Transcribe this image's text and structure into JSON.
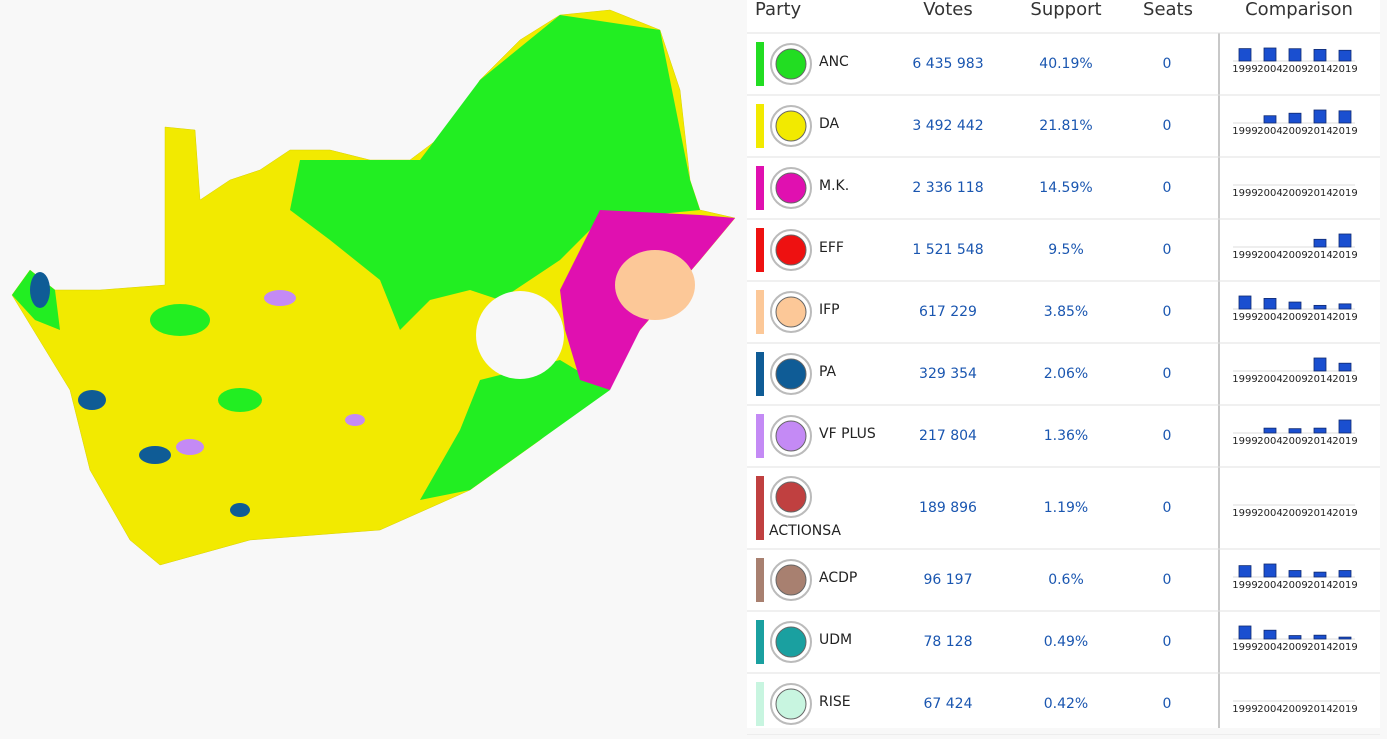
{
  "header": {
    "party": "Party",
    "votes": "Votes",
    "support": "Support",
    "seats": "Seats",
    "comparison": "Comparison"
  },
  "comparison_years": [
    "1999",
    "2004",
    "2009",
    "2014",
    "2019"
  ],
  "rows": [
    {
      "name": "ANC",
      "color": "#22dd22",
      "votes": "6 435 983",
      "support": "40.19%",
      "seats": "0",
      "comparison": [
        66.4,
        69.7,
        65.9,
        62.2,
        57.5
      ]
    },
    {
      "name": "DA",
      "color": "#f2ea00",
      "votes": "3 492 442",
      "support": "21.81%",
      "seats": "0",
      "comparison": [
        null,
        12.4,
        16.7,
        22.2,
        20.8
      ]
    },
    {
      "name": "M.K.",
      "color": "#e010b0",
      "votes": "2 336 118",
      "support": "14.59%",
      "seats": "0",
      "comparison": [
        null,
        null,
        null,
        null,
        null
      ]
    },
    {
      "name": "EFF",
      "color": "#ee1111",
      "votes": "1 521 548",
      "support": "9.5%",
      "seats": "0",
      "comparison": [
        null,
        null,
        null,
        6.4,
        10.8
      ]
    },
    {
      "name": "IFP",
      "color": "#fcc898",
      "votes": "617 229",
      "support": "3.85%",
      "seats": "0",
      "comparison": [
        8.6,
        7.0,
        4.6,
        2.4,
        3.4
      ]
    },
    {
      "name": "PA",
      "color": "#0f5c96",
      "votes": "329 354",
      "support": "2.06%",
      "seats": "0",
      "comparison": [
        null,
        null,
        null,
        1.0,
        0.6
      ]
    },
    {
      "name": "VF PLUS",
      "color": "#c48af5",
      "votes": "217 804",
      "support": "1.36%",
      "seats": "0",
      "comparison": [
        null,
        0.9,
        0.8,
        0.9,
        2.4
      ]
    },
    {
      "name": "ACTIONSA",
      "color": "#c04040",
      "votes": "189 896",
      "support": "1.19%",
      "seats": "0",
      "comparison": [
        null,
        null,
        null,
        null,
        null
      ]
    },
    {
      "name": "ACDP",
      "color": "#a88070",
      "votes": "96 197",
      "support": "0.6%",
      "seats": "0",
      "comparison": [
        1.4,
        1.6,
        0.8,
        0.6,
        0.8
      ]
    },
    {
      "name": "UDM",
      "color": "#1aa0a0",
      "votes": "78 128",
      "support": "0.49%",
      "seats": "0",
      "comparison": [
        3.4,
        2.3,
        0.9,
        1.0,
        0.5
      ]
    },
    {
      "name": "RISE",
      "color": "#c8f5e0",
      "votes": "67 424",
      "support": "0.42%",
      "seats": "0",
      "comparison": [
        null,
        null,
        null,
        null,
        null
      ]
    }
  ]
}
